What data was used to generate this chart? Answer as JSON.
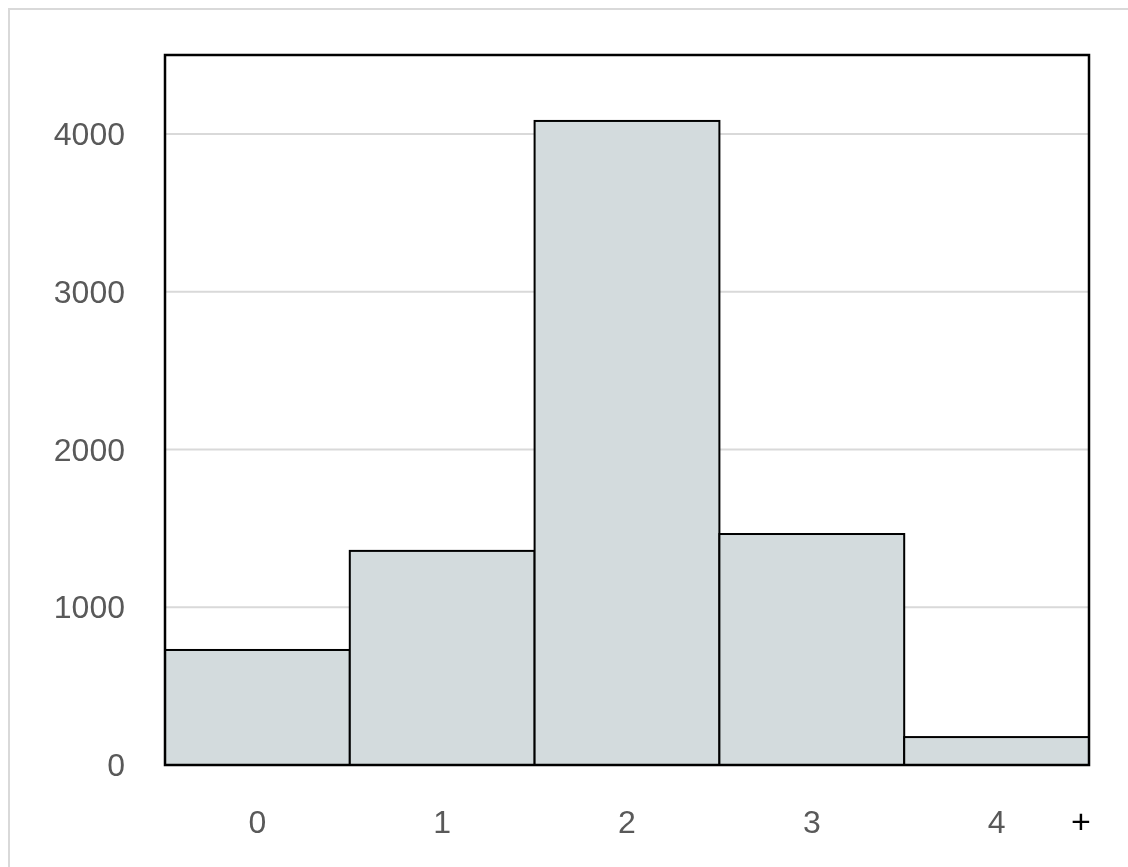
{
  "chart_data": {
    "type": "bar",
    "categories": [
      "0",
      "1",
      "2",
      "3",
      "4"
    ],
    "values": [
      729,
      1357,
      4082,
      1464,
      177
    ],
    "color": "#d3dbdd",
    "ylim": [
      0,
      4500
    ],
    "yticks": [
      0,
      1000,
      2000,
      3000,
      4000
    ],
    "grid": "y",
    "annotations": [
      "+"
    ]
  }
}
